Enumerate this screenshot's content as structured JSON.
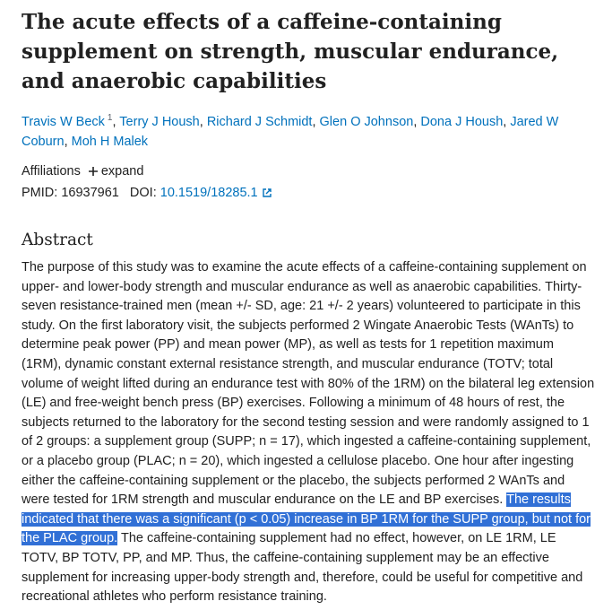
{
  "title": "The acute effects of a caffeine-containing supplement on strength, muscular endurance, and anaerobic capabilities",
  "authors": [
    {
      "name": "Travis W Beck",
      "affiliation": "1"
    },
    {
      "name": "Terry J Housh"
    },
    {
      "name": "Richard J Schmidt"
    },
    {
      "name": "Glen O Johnson"
    },
    {
      "name": "Dona J Housh"
    },
    {
      "name": "Jared W Coburn"
    },
    {
      "name": "Moh H Malek"
    }
  ],
  "author_separator": ",",
  "affiliations": {
    "label": "Affiliations",
    "toggle": "expand"
  },
  "pmid": {
    "label": "PMID:",
    "value": "16937961"
  },
  "doi": {
    "label": "DOI:",
    "value": "10.1519/18285.1"
  },
  "abstract": {
    "heading": "Abstract",
    "text_before": "The purpose of this study was to examine the acute effects of a caffeine-containing supplement on upper- and lower-body strength and muscular endurance as well as anaerobic capabilities. Thirty-seven resistance-trained men (mean +/- SD, age: 21 +/- 2 years) volunteered to participate in this study. On the first laboratory visit, the subjects performed 2 Wingate Anaerobic Tests (WAnTs) to determine peak power (PP) and mean power (MP), as well as tests for 1 repetition maximum (1RM), dynamic constant external resistance strength, and muscular endurance (TOTV; total volume of weight lifted during an endurance test with 80% of the 1RM) on the bilateral leg extension (LE) and free-weight bench press (BP) exercises. Following a minimum of 48 hours of rest, the subjects returned to the laboratory for the second testing session and were randomly assigned to 1 of 2 groups: a supplement group (SUPP; n = 17), which ingested a caffeine-containing supplement, or a placebo group (PLAC; n = 20), which ingested a cellulose placebo. One hour after ingesting either the caffeine-containing supplement or the placebo, the subjects performed 2 WAnTs and were tested for 1RM strength and muscular endurance on the LE and BP exercises.",
    "highlighted": "The results indicated that there was a significant (p < 0.05) increase in BP 1RM for the SUPP group, but not for the PLAC group.",
    "text_after": "The caffeine-containing supplement had no effect, however, on LE 1RM, LE TOTV, BP TOTV, PP, and MP. Thus, the caffeine-containing supplement may be an effective supplement for increasing upper-body strength and, therefore, could be useful for competitive and recreational athletes who perform resistance training."
  }
}
